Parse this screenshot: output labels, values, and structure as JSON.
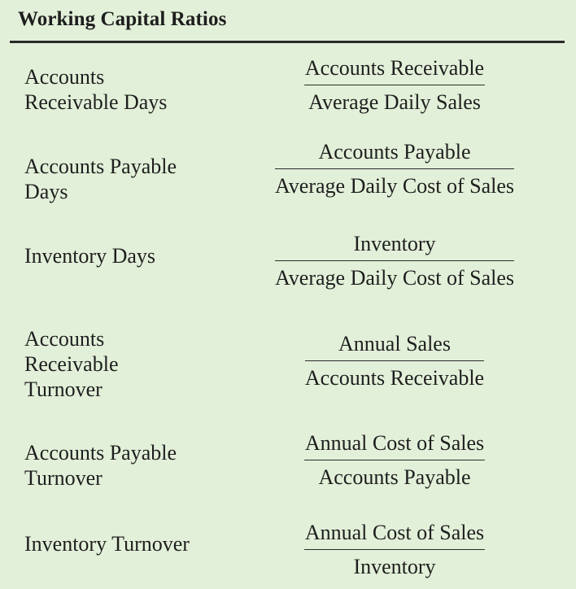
{
  "title": "Working Capital Ratios",
  "ratios": [
    {
      "label_lines": [
        "Accounts",
        "Receivable Days"
      ],
      "numerator": "Accounts Receivable",
      "denominator": "Average Daily Sales"
    },
    {
      "label_lines": [
        "Accounts Payable",
        "Days"
      ],
      "numerator": "Accounts Payable",
      "denominator": "Average Daily Cost of Sales"
    },
    {
      "label_lines": [
        "Inventory Days"
      ],
      "numerator": "Inventory",
      "denominator": "Average Daily Cost of Sales"
    },
    {
      "label_lines": [
        "Accounts",
        "Receivable",
        "Turnover"
      ],
      "numerator": "Annual Sales",
      "denominator": "Accounts Receivable"
    },
    {
      "label_lines": [
        "Accounts Payable",
        "Turnover"
      ],
      "numerator": "Annual Cost of Sales",
      "denominator": "Accounts Payable"
    },
    {
      "label_lines": [
        "Inventory Turnover"
      ],
      "numerator": "Annual Cost of Sales",
      "denominator": "Inventory"
    }
  ]
}
